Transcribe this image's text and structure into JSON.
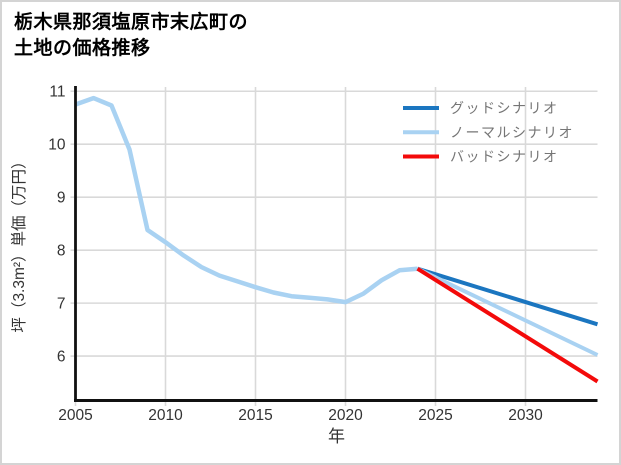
{
  "window": {
    "title_lines": [
      "栃木県那須塩原市末広町の",
      "土地の価格推移"
    ]
  },
  "chart_data": {
    "type": "line",
    "title": "栃木県那須塩原市末広町の土地の価格推移",
    "xlabel": "年",
    "ylabel": "坪（3.3m²）単価（万円）",
    "xlim": [
      2005,
      2034
    ],
    "ylim": [
      5.19,
      11.08
    ],
    "xticks": [
      2005,
      2010,
      2015,
      2020,
      2025,
      2030
    ],
    "yticks": [
      6,
      7,
      8,
      9,
      10,
      11
    ],
    "grid": true,
    "legend_position": "upper-right",
    "colors": {
      "good": "#1b76c0",
      "normal": "#a9d2f2",
      "bad": "#f30a0a",
      "grid": "#d9d9d9",
      "axis": "#111111",
      "tick_label": "#333333",
      "legend_text": "#757575"
    },
    "series": [
      {
        "id": "history",
        "in_legend": false,
        "color_key": "normal",
        "width": 4.5,
        "x": [
          2005,
          2006,
          2007,
          2008,
          2009,
          2010,
          2011,
          2012,
          2013,
          2014,
          2015,
          2016,
          2017,
          2018,
          2019,
          2020,
          2021,
          2022,
          2023,
          2024
        ],
        "y": [
          10.75,
          10.87,
          10.73,
          9.9,
          8.38,
          8.15,
          7.9,
          7.68,
          7.52,
          7.41,
          7.3,
          7.2,
          7.13,
          7.1,
          7.07,
          7.02,
          7.18,
          7.43,
          7.62,
          7.65
        ]
      },
      {
        "id": "good-scenario",
        "label": "グッドシナリオ",
        "in_legend": true,
        "color_key": "good",
        "width": 4,
        "x": [
          2024,
          2034
        ],
        "y": [
          7.65,
          6.6
        ]
      },
      {
        "id": "normal-scenario",
        "label": "ノーマルシナリオ",
        "in_legend": true,
        "color_key": "normal",
        "width": 4,
        "x": [
          2024,
          2034
        ],
        "y": [
          7.65,
          6.02
        ]
      },
      {
        "id": "bad-scenario",
        "label": "バッドシナリオ",
        "in_legend": true,
        "color_key": "bad",
        "width": 4,
        "x": [
          2024,
          2034
        ],
        "y": [
          7.65,
          5.52
        ]
      }
    ]
  }
}
